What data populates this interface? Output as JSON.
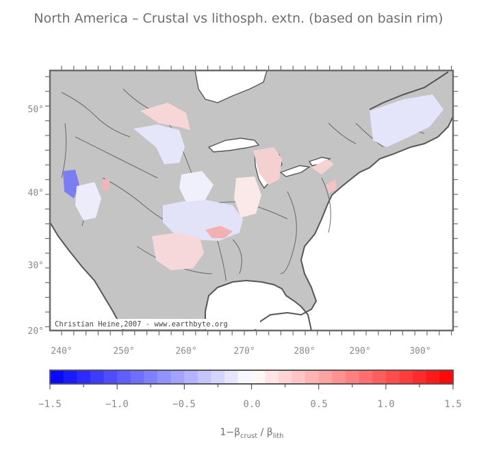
{
  "title": "North America – Crustal vs lithosph. extn. (based on basin rim)",
  "credit": "Christian Heine,2007 - www.earthbyte.org",
  "map": {
    "lon_labels": [
      "240°",
      "250°",
      "260°",
      "270°",
      "280°",
      "290°",
      "300°"
    ],
    "lat_labels": [
      "50°",
      "40°",
      "30°",
      "20°"
    ],
    "land_color": "#c4c4c4",
    "frame_color": "#6b6b6b"
  },
  "colorbar": {
    "min": -1.5,
    "max": 1.5,
    "tick_labels": [
      "−1.5",
      "−1.0",
      "−0.5",
      "0.0",
      "0.5",
      "1.0",
      "1.5"
    ],
    "label_prefix": "1−β",
    "label_sub1": "crust",
    "label_mid": " / β",
    "label_sub2": "lith",
    "low_color": "#0000ff",
    "mid_color": "#ffffff",
    "high_color": "#ff0000"
  }
}
